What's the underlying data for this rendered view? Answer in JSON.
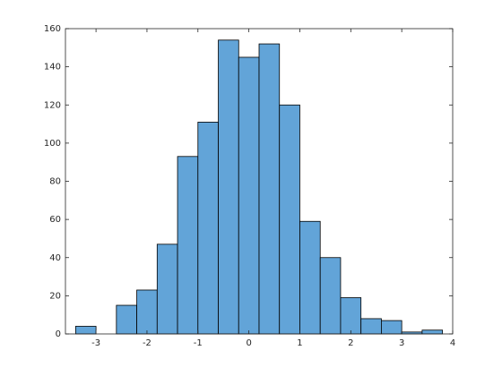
{
  "chart_data": {
    "type": "histogram",
    "bins": [
      -3.4,
      -3.0,
      -2.6,
      -2.2,
      -1.8,
      -1.4,
      -1.0,
      -0.6,
      -0.2,
      0.2,
      0.6,
      1.0,
      1.4,
      1.8,
      2.2,
      2.6,
      3.0,
      3.4,
      3.8
    ],
    "values": [
      4,
      0,
      15,
      23,
      47,
      93,
      111,
      154,
      145,
      152,
      120,
      59,
      40,
      19,
      8,
      7,
      1,
      2
    ],
    "color": "#62a4d8",
    "xlim": [
      -3.6,
      4
    ],
    "xticks": [
      -3,
      -2,
      -1,
      0,
      1,
      2,
      3,
      4
    ],
    "ylim": [
      0,
      160
    ],
    "yticks": [
      0,
      20,
      40,
      60,
      80,
      100,
      120,
      140,
      160
    ]
  }
}
